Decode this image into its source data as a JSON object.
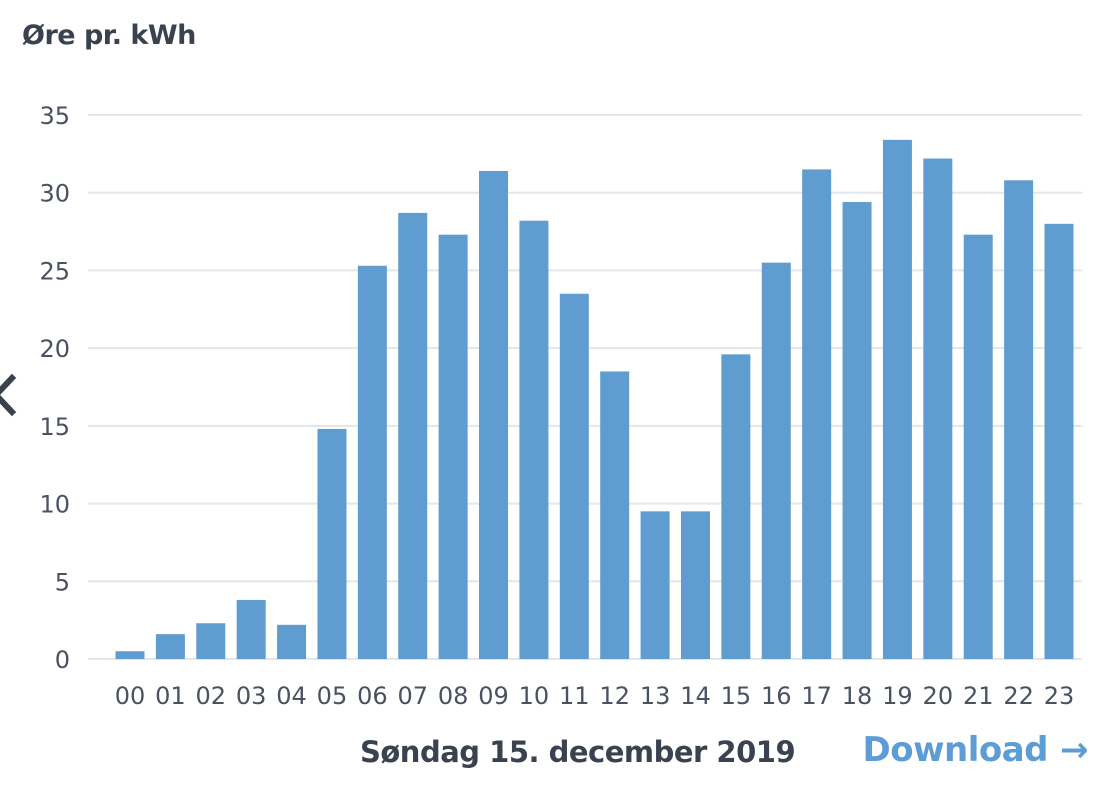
{
  "header": {
    "unit_label": "Øre pr. kWh"
  },
  "footer": {
    "date_label": "Søndag 15. december 2019",
    "download_label": "Download",
    "download_arrow": "→"
  },
  "icons": {
    "prev": "chevron-left-icon",
    "download": "arrow-right-icon"
  },
  "colors": {
    "bar": "#5f9dd0",
    "grid": "#e3e6ea",
    "text": "#4a5160",
    "link": "#5d9dd6"
  },
  "chart_data": {
    "type": "bar",
    "title": "",
    "xlabel": "",
    "ylabel": "Øre pr. kWh",
    "categories": [
      "00",
      "01",
      "02",
      "03",
      "04",
      "05",
      "06",
      "07",
      "08",
      "09",
      "10",
      "11",
      "12",
      "13",
      "14",
      "15",
      "16",
      "17",
      "18",
      "19",
      "20",
      "21",
      "22",
      "23"
    ],
    "values": [
      0.5,
      1.6,
      2.3,
      3.8,
      2.2,
      14.8,
      25.3,
      28.7,
      27.3,
      31.4,
      28.2,
      23.5,
      18.5,
      9.5,
      9.5,
      19.6,
      25.5,
      31.5,
      29.4,
      33.4,
      32.2,
      27.3,
      30.8,
      28.0
    ],
    "yticks": [
      0,
      5,
      10,
      15,
      20,
      25,
      30,
      35
    ],
    "ylim": [
      0,
      35
    ],
    "grid": true,
    "legend": "none"
  }
}
